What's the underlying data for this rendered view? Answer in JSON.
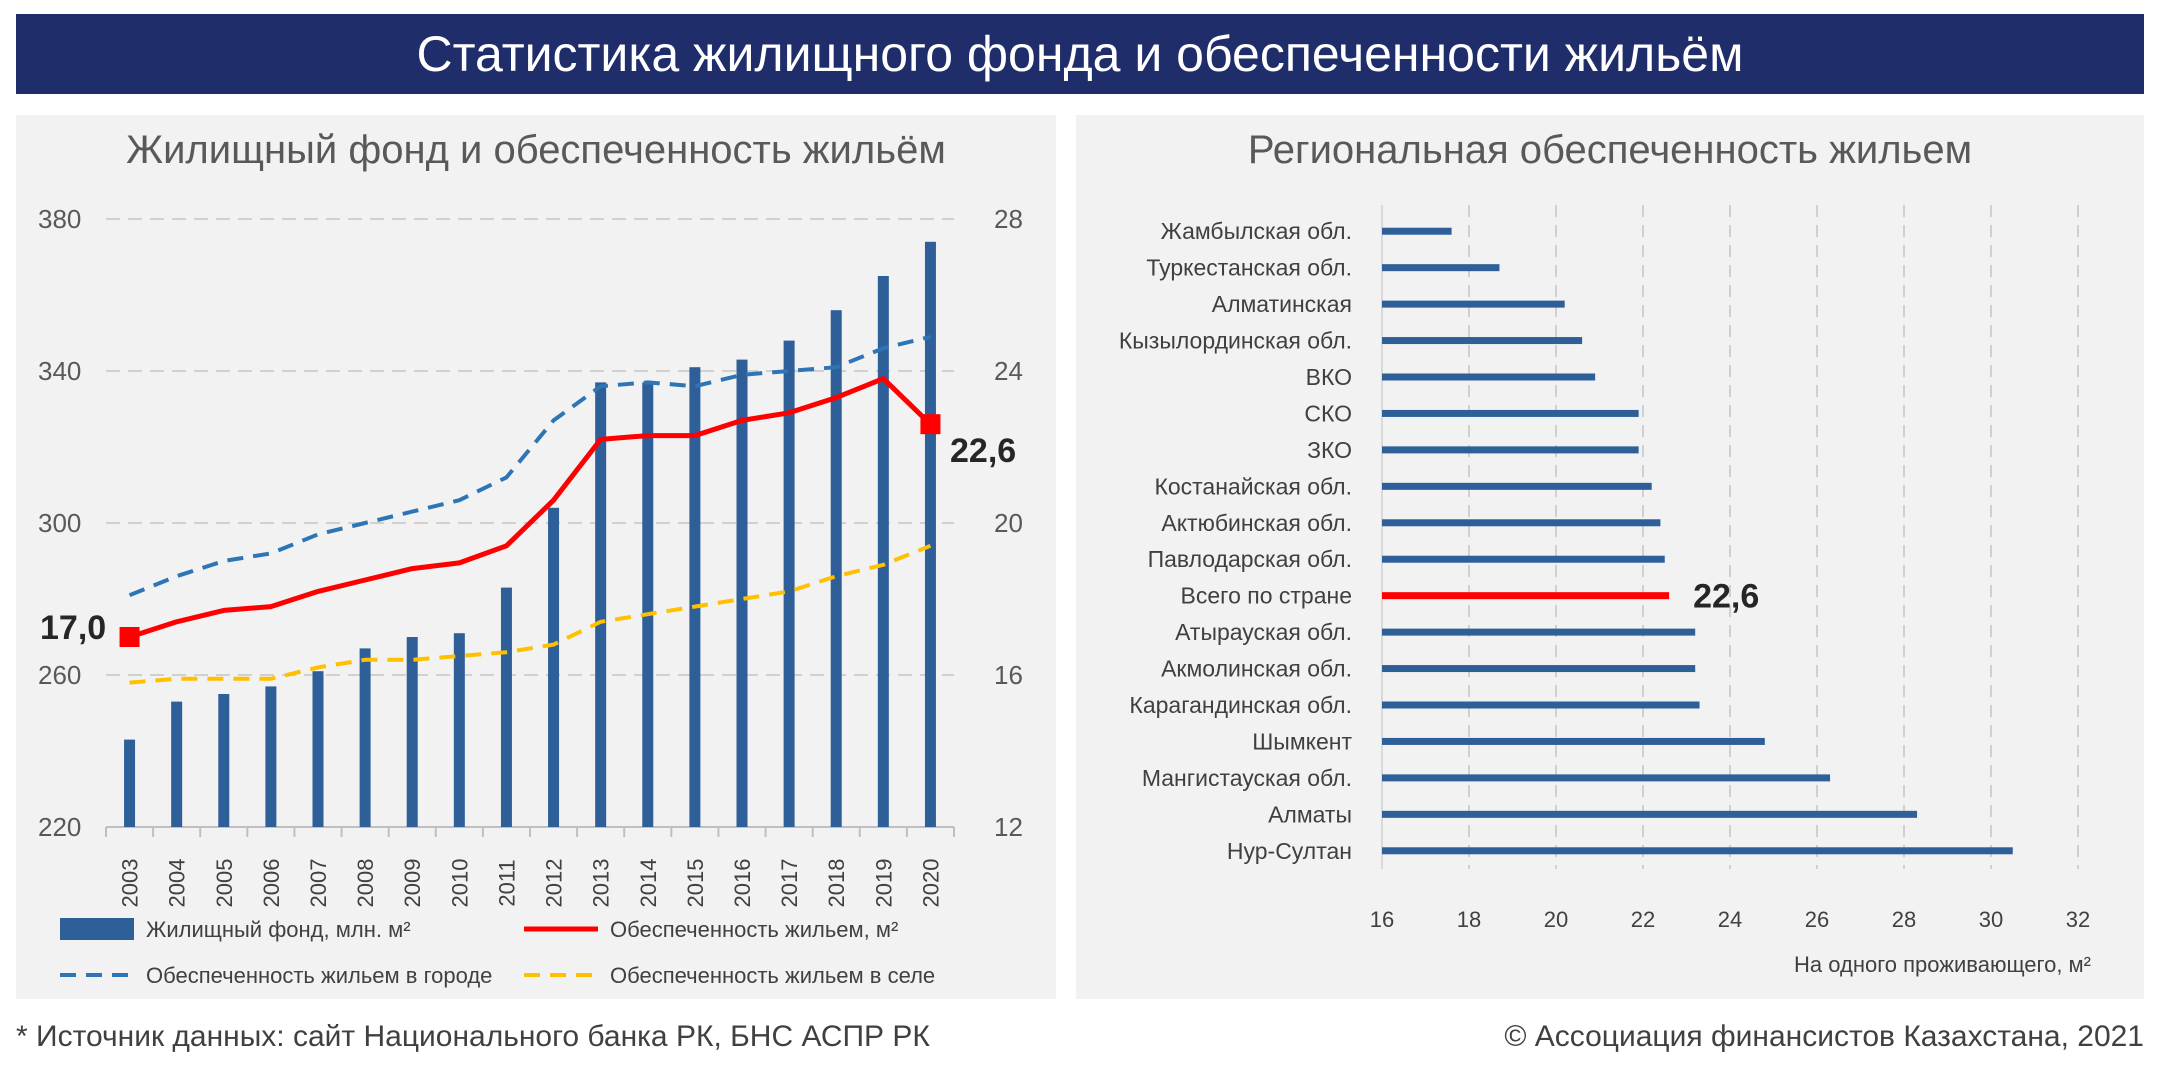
{
  "header": {
    "title": "Статистика жилищного фонда и обеспеченности жильём"
  },
  "footer": {
    "source": "* Источник данных: сайт Национального банка РК, БНС АСПР РК",
    "copyright": "© Ассоциация финансистов Казахстана, 2021"
  },
  "colors": {
    "banner": "#1f2d6b",
    "bar": "#2e5f99",
    "total_line": "#ff0000",
    "city_line": "#2e75b6",
    "village_line": "#ffc000",
    "marker": "#ff0000"
  },
  "chart_data": [
    {
      "type": "bar",
      "title": "Жилищный фонд и обеспеченность жильём",
      "categories": [
        "2003",
        "2004",
        "2005",
        "2006",
        "2007",
        "2008",
        "2009",
        "2010",
        "2011",
        "2012",
        "2013",
        "2014",
        "2015",
        "2016",
        "2017",
        "2018",
        "2019",
        "2020"
      ],
      "ylim": [
        220,
        380
      ],
      "yticks": [
        "380",
        "340",
        "300",
        "260",
        "220"
      ],
      "y2lim": [
        12,
        28
      ],
      "y2ticks": [
        "28",
        "24",
        "20",
        "16",
        "12"
      ],
      "grid": true,
      "legend_position": "bottom",
      "series": [
        {
          "name": "Жилищный фонд, млн. м²",
          "type": "bar",
          "axis": "left",
          "values": [
            243,
            253,
            255,
            257,
            261,
            267,
            270,
            271,
            283,
            304,
            337,
            337,
            341,
            343,
            348,
            356,
            365,
            374
          ]
        },
        {
          "name": "Обеспеченность жильем, м²",
          "type": "line",
          "axis": "right",
          "values": [
            17.0,
            17.4,
            17.7,
            17.8,
            18.2,
            18.5,
            18.8,
            18.95,
            19.4,
            20.6,
            22.2,
            22.3,
            22.3,
            22.7,
            22.9,
            23.3,
            23.8,
            22.6
          ]
        },
        {
          "name": "Обеспеченность  жильем в городе",
          "type": "line",
          "dash": true,
          "axis": "right",
          "values": [
            18.1,
            18.6,
            19.0,
            19.2,
            19.7,
            20.0,
            20.3,
            20.6,
            21.2,
            22.7,
            23.6,
            23.7,
            23.6,
            23.9,
            24.0,
            24.1,
            24.6,
            24.9
          ]
        },
        {
          "name": "Обеспеченность  жильем в селе",
          "type": "line",
          "dash": true,
          "axis": "right",
          "values": [
            15.8,
            15.9,
            15.9,
            15.9,
            16.2,
            16.4,
            16.4,
            16.5,
            16.6,
            16.8,
            17.4,
            17.6,
            17.8,
            18.0,
            18.2,
            18.6,
            18.9,
            19.4
          ]
        }
      ],
      "annotations": {
        "start": "17,0",
        "end": "22,6"
      }
    },
    {
      "type": "bar",
      "orientation": "horizontal",
      "title": "Региональная обеспеченность жильем",
      "xlabel": "На одного проживающего, м²",
      "xlim": [
        16,
        32
      ],
      "xticks": [
        "16",
        "18",
        "20",
        "22",
        "24",
        "26",
        "28",
        "30",
        "32"
      ],
      "grid": true,
      "categories": [
        "Жамбылская обл.",
        "Туркестанская обл.",
        "Алматинская",
        "Кызылординская обл.",
        "ВКО",
        "СКО",
        "ЗКО",
        "Костанайская обл.",
        "Актюбинская обл.",
        "Павлодарская обл.",
        "Всего по стране",
        "Атырауская обл.",
        "Акмолинская обл.",
        "Карагандинская обл.",
        "Шымкент",
        "Мангистауская обл.",
        "Алматы",
        "Нур-Султан"
      ],
      "values": [
        17.6,
        18.7,
        20.2,
        20.6,
        20.9,
        21.9,
        21.9,
        22.2,
        22.4,
        22.5,
        22.6,
        23.2,
        23.2,
        23.3,
        24.8,
        26.3,
        28.3,
        30.5
      ],
      "highlight": {
        "category": "Всего по стране",
        "label": "22,6"
      }
    }
  ]
}
